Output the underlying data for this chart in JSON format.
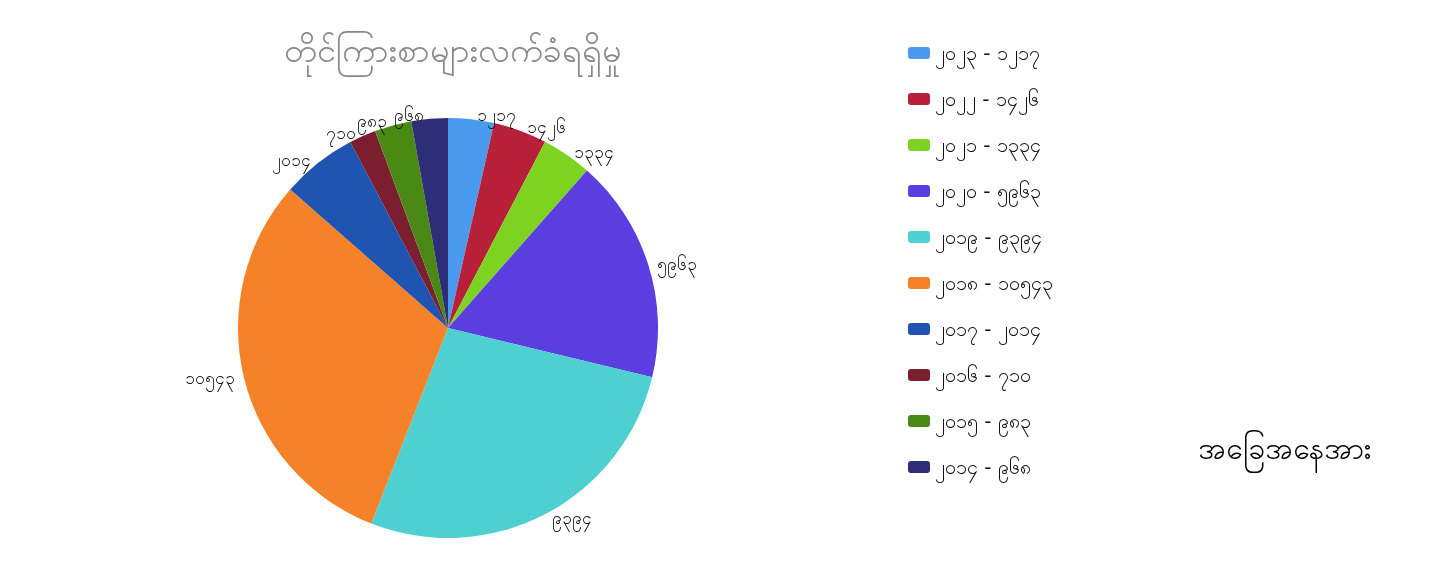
{
  "chart_data": {
    "type": "pie",
    "title": "တိုင်ကြားစာများလက်ခံရရှိမှု",
    "legend_title": "အခြေအနေအား",
    "categories": [
      "၂၀၂၃ - ၁၂၁၇",
      "၂၀၂၂ - ၁၄၂၆",
      "၂၀၂၁ - ၁၃၃၄",
      "၂၀၂၀ - ၅၉၆၃",
      "၂၀၁၉ - ၉၃၉၄",
      "၂၀၁၈ - ၁၀၅၄၃",
      "၂၀၁၇ - ၂၀၁၄",
      "၂၀၁၆ - ၇၁၀",
      "၂၀၁၅ - ၉၈၃",
      "၂၀၁၄ - ၉၆၈"
    ],
    "values": [
      1217,
      1426,
      1334,
      5963,
      9394,
      10543,
      2014,
      710,
      983,
      968
    ],
    "value_labels": [
      "၁၂၁၇",
      "၁၄၂၆",
      "၁၃၃၄",
      "၅၉၆၃",
      "၉၃၉၄",
      "၁၀၅၄၃",
      "၂၀၁၄",
      "၇၁၀",
      "၉၈၃",
      "၉၆၈"
    ],
    "colors": [
      "#4a9af0",
      "#b8203a",
      "#7ed321",
      "#5a3ee0",
      "#4fd0d0",
      "#f58228",
      "#1f55b0",
      "#7a1e30",
      "#4a8a14",
      "#2e2e78"
    ],
    "legend": "right"
  }
}
